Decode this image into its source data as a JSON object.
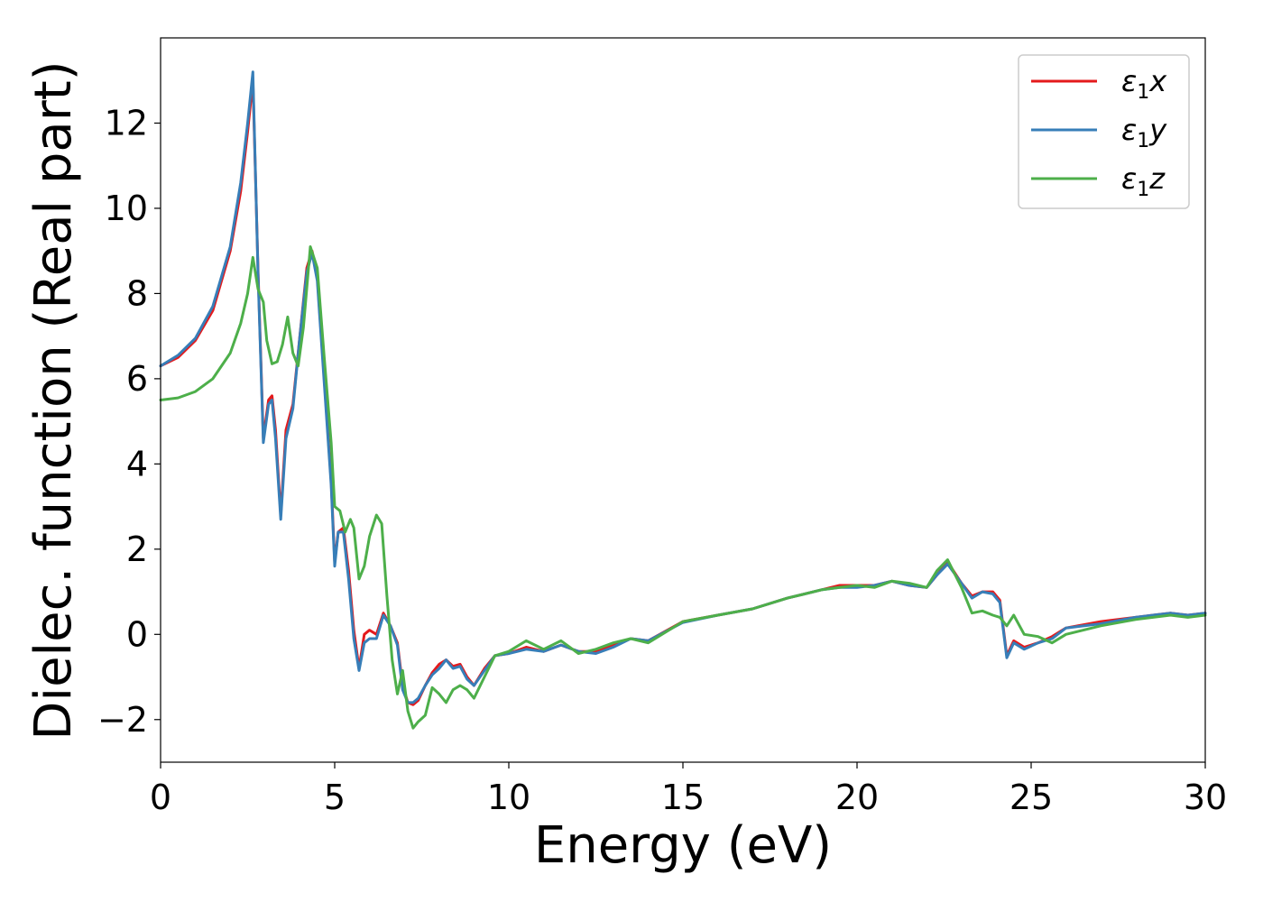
{
  "chart_data": {
    "type": "line",
    "xlabel": "Energy (eV)",
    "ylabel": "Dielec. function (Real part)",
    "xlim": [
      0,
      30
    ],
    "ylim": [
      -3,
      14
    ],
    "grid": false,
    "legend_position": "top-right",
    "x_ticks": [
      0,
      5,
      10,
      15,
      20,
      25,
      30
    ],
    "x_tick_labels": [
      "0",
      "5",
      "10",
      "15",
      "20",
      "25",
      "30"
    ],
    "y_ticks": [
      -2,
      0,
      2,
      4,
      6,
      8,
      10,
      12
    ],
    "y_tick_labels": [
      "−2",
      "0",
      "2",
      "4",
      "6",
      "8",
      "10",
      "12"
    ],
    "series": [
      {
        "name": "ε₁x",
        "legend_base": "ε",
        "legend_sub": "1",
        "legend_var": "x",
        "color": "#e41a1c",
        "x": [
          0,
          0.5,
          1.0,
          1.5,
          2.0,
          2.3,
          2.5,
          2.65,
          2.8,
          2.95,
          3.1,
          3.2,
          3.3,
          3.45,
          3.6,
          3.8,
          4.0,
          4.2,
          4.35,
          4.5,
          4.7,
          4.9,
          5.0,
          5.1,
          5.25,
          5.4,
          5.55,
          5.7,
          5.85,
          6.0,
          6.2,
          6.4,
          6.6,
          6.8,
          6.95,
          7.1,
          7.25,
          7.4,
          7.6,
          7.8,
          8.0,
          8.2,
          8.4,
          8.6,
          8.8,
          9.0,
          9.3,
          9.6,
          10.0,
          10.5,
          11.0,
          11.5,
          12.0,
          12.5,
          13.0,
          13.5,
          14.0,
          15.0,
          16.0,
          17.0,
          18.0,
          19.0,
          19.5,
          20.0,
          20.5,
          21.0,
          21.5,
          22.0,
          22.3,
          22.6,
          23.0,
          23.3,
          23.6,
          23.9,
          24.1,
          24.3,
          24.5,
          24.8,
          25.2,
          25.6,
          26.0,
          27.0,
          28.0,
          28.5,
          29.0,
          29.5,
          30.0
        ],
        "y": [
          6.3,
          6.5,
          6.9,
          7.6,
          9.0,
          10.4,
          11.8,
          13.0,
          8.5,
          4.6,
          5.5,
          5.6,
          4.8,
          2.8,
          4.8,
          5.4,
          7.0,
          8.6,
          9.0,
          8.4,
          6.0,
          3.6,
          1.7,
          2.4,
          2.5,
          1.5,
          0.1,
          -0.8,
          0.0,
          0.1,
          0.0,
          0.5,
          0.2,
          -0.2,
          -1.2,
          -1.6,
          -1.65,
          -1.55,
          -1.2,
          -0.9,
          -0.7,
          -0.6,
          -0.75,
          -0.7,
          -1.0,
          -1.2,
          -0.8,
          -0.5,
          -0.45,
          -0.3,
          -0.4,
          -0.25,
          -0.4,
          -0.4,
          -0.25,
          -0.1,
          -0.15,
          0.3,
          0.45,
          0.6,
          0.85,
          1.05,
          1.15,
          1.15,
          1.15,
          1.25,
          1.15,
          1.1,
          1.4,
          1.7,
          1.2,
          0.9,
          1.0,
          1.0,
          0.8,
          -0.5,
          -0.15,
          -0.3,
          -0.2,
          -0.05,
          0.15,
          0.3,
          0.4,
          0.45,
          0.5,
          0.45,
          0.5
        ]
      },
      {
        "name": "ε₁y",
        "legend_base": "ε",
        "legend_sub": "1",
        "legend_var": "y",
        "color": "#377eb8",
        "x": [
          0,
          0.5,
          1.0,
          1.5,
          2.0,
          2.3,
          2.5,
          2.65,
          2.8,
          2.95,
          3.1,
          3.2,
          3.3,
          3.45,
          3.6,
          3.8,
          4.0,
          4.2,
          4.35,
          4.5,
          4.7,
          4.9,
          5.0,
          5.1,
          5.25,
          5.4,
          5.55,
          5.7,
          5.85,
          6.0,
          6.2,
          6.4,
          6.6,
          6.8,
          6.95,
          7.1,
          7.25,
          7.4,
          7.6,
          7.8,
          8.0,
          8.2,
          8.4,
          8.6,
          8.8,
          9.0,
          9.3,
          9.6,
          10.0,
          10.5,
          11.0,
          11.5,
          12.0,
          12.5,
          13.0,
          13.5,
          14.0,
          15.0,
          16.0,
          17.0,
          18.0,
          19.0,
          19.5,
          20.0,
          20.5,
          21.0,
          21.5,
          22.0,
          22.3,
          22.6,
          23.0,
          23.3,
          23.6,
          23.9,
          24.1,
          24.3,
          24.5,
          24.8,
          25.2,
          25.6,
          26.0,
          27.0,
          28.0,
          28.5,
          29.0,
          29.5,
          30.0
        ],
        "y": [
          6.3,
          6.55,
          6.95,
          7.7,
          9.1,
          10.6,
          12.0,
          13.2,
          8.4,
          4.5,
          5.4,
          5.5,
          4.6,
          2.7,
          4.6,
          5.3,
          7.0,
          8.5,
          8.95,
          8.3,
          5.9,
          3.5,
          1.6,
          2.4,
          2.4,
          1.3,
          -0.1,
          -0.85,
          -0.2,
          -0.1,
          -0.1,
          0.45,
          0.2,
          -0.25,
          -1.3,
          -1.6,
          -1.6,
          -1.5,
          -1.2,
          -0.95,
          -0.8,
          -0.6,
          -0.8,
          -0.75,
          -1.05,
          -1.2,
          -0.85,
          -0.5,
          -0.45,
          -0.35,
          -0.4,
          -0.25,
          -0.4,
          -0.45,
          -0.3,
          -0.1,
          -0.15,
          0.28,
          0.45,
          0.6,
          0.85,
          1.05,
          1.1,
          1.1,
          1.15,
          1.25,
          1.15,
          1.1,
          1.4,
          1.65,
          1.2,
          0.85,
          1.0,
          0.95,
          0.75,
          -0.55,
          -0.2,
          -0.35,
          -0.2,
          -0.1,
          0.15,
          0.25,
          0.4,
          0.45,
          0.5,
          0.45,
          0.5
        ]
      },
      {
        "name": "ε₁z",
        "legend_base": "ε",
        "legend_sub": "1",
        "legend_var": "z",
        "color": "#4daf4a",
        "x": [
          0,
          0.5,
          1.0,
          1.5,
          2.0,
          2.3,
          2.5,
          2.65,
          2.8,
          2.95,
          3.05,
          3.2,
          3.35,
          3.5,
          3.65,
          3.8,
          3.95,
          4.1,
          4.3,
          4.5,
          4.7,
          4.9,
          5.0,
          5.15,
          5.3,
          5.45,
          5.55,
          5.7,
          5.85,
          6.0,
          6.2,
          6.35,
          6.5,
          6.65,
          6.8,
          6.95,
          7.1,
          7.25,
          7.4,
          7.6,
          7.8,
          8.0,
          8.2,
          8.4,
          8.6,
          8.8,
          9.0,
          9.3,
          9.6,
          10.0,
          10.5,
          11.0,
          11.5,
          12.0,
          12.5,
          13.0,
          13.5,
          14.0,
          15.0,
          16.0,
          17.0,
          18.0,
          19.0,
          19.5,
          20.0,
          20.5,
          21.0,
          21.5,
          22.0,
          22.3,
          22.6,
          23.0,
          23.3,
          23.6,
          23.9,
          24.1,
          24.3,
          24.5,
          24.8,
          25.2,
          25.6,
          26.0,
          27.0,
          28.0,
          28.5,
          29.0,
          29.5,
          30.0
        ],
        "y": [
          5.5,
          5.55,
          5.7,
          6.0,
          6.6,
          7.3,
          8.0,
          8.85,
          8.1,
          7.8,
          6.9,
          6.35,
          6.4,
          6.8,
          7.45,
          6.6,
          6.3,
          7.2,
          9.1,
          8.6,
          6.5,
          4.5,
          3.0,
          2.9,
          2.4,
          2.7,
          2.5,
          1.3,
          1.6,
          2.3,
          2.8,
          2.6,
          0.9,
          -0.6,
          -1.4,
          -0.85,
          -1.8,
          -2.2,
          -2.05,
          -1.9,
          -1.25,
          -1.4,
          -1.6,
          -1.3,
          -1.2,
          -1.3,
          -1.5,
          -1.0,
          -0.5,
          -0.4,
          -0.15,
          -0.35,
          -0.15,
          -0.45,
          -0.35,
          -0.2,
          -0.1,
          -0.2,
          0.3,
          0.45,
          0.6,
          0.85,
          1.05,
          1.1,
          1.15,
          1.1,
          1.25,
          1.2,
          1.1,
          1.5,
          1.75,
          1.1,
          0.5,
          0.55,
          0.45,
          0.4,
          0.2,
          0.45,
          0.0,
          -0.05,
          -0.2,
          0.0,
          0.2,
          0.35,
          0.4,
          0.45,
          0.4,
          0.45
        ]
      }
    ]
  }
}
